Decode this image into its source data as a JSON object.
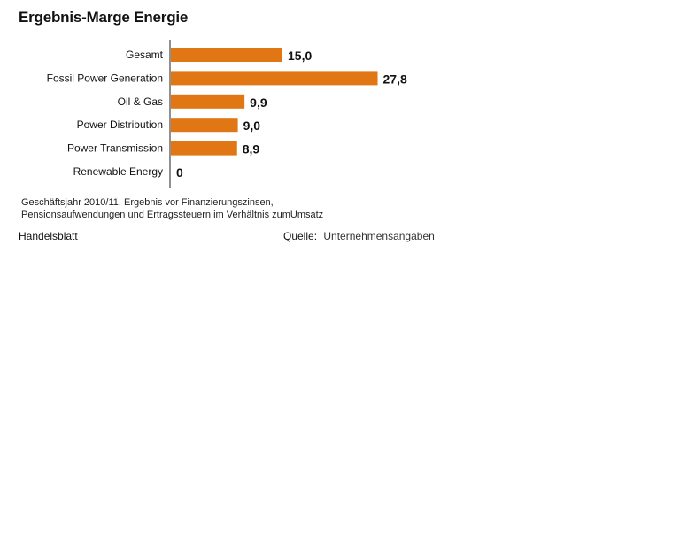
{
  "chart_data": {
    "type": "bar",
    "orientation": "horizontal",
    "title": "Ergebnis-Marge Energie",
    "categories": [
      "Gesamt",
      "Fossil Power Generation",
      "Oil & Gas",
      "Power Distribution",
      "Power Transmission",
      "Renewable Energy"
    ],
    "values": [
      15.0,
      27.8,
      9.9,
      9.0,
      8.9,
      0
    ],
    "value_labels": [
      "15,0",
      "27,8",
      "9,9",
      "9,0",
      "8,9",
      "0"
    ],
    "xlim": [
      0,
      30
    ],
    "grid": false,
    "bar_color": "#e07614"
  },
  "footnote": {
    "line1": "Geschäftsjahr 2010/11, Ergebnis vor Finanzierungszinsen,",
    "line2": "Pensionsaufwendungen und Ertragssteuern im Verhältnis zumUmsatz"
  },
  "publisher": "Handelsblatt",
  "source": {
    "label": "Quelle:",
    "value": "Unternehmensangaben"
  }
}
